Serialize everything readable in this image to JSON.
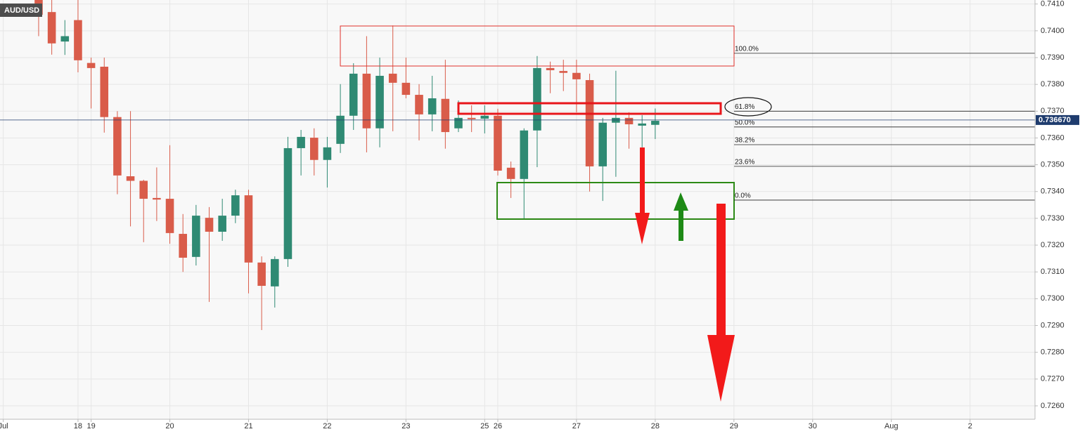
{
  "chart_data": {
    "type": "candlestick",
    "title": "AUD/USD",
    "x": [
      0,
      1,
      2,
      3,
      4,
      5,
      6,
      7,
      8,
      9,
      10,
      11,
      12,
      13,
      14,
      15,
      16,
      17,
      18,
      19,
      20,
      21,
      22,
      23,
      24,
      25,
      26,
      27,
      28,
      29,
      30,
      31,
      32,
      33,
      34,
      35,
      36,
      37,
      38,
      39,
      40,
      41,
      42,
      43,
      44,
      45,
      46,
      47
    ],
    "open": [
      0.7412,
      0.7407,
      0.7396,
      0.7404,
      0.7388,
      0.73866,
      0.73678,
      0.73457,
      0.7344,
      0.73376,
      0.73373,
      0.73242,
      0.73156,
      0.73302,
      0.7325,
      0.7331,
      0.73386,
      0.73135,
      0.73046,
      0.73148,
      0.73562,
      0.73601,
      0.73518,
      0.73578,
      0.73683,
      0.7384,
      0.73636,
      0.7384,
      0.73806,
      0.73761,
      0.73688,
      0.73746,
      0.73636,
      0.73675,
      0.73672,
      0.73683,
      0.73489,
      0.73447,
      0.73628,
      0.73861,
      0.7385,
      0.73843,
      0.73816,
      0.73494,
      0.73657,
      0.73675,
      0.73646,
      0.73649
    ],
    "high": [
      0.7414,
      0.7412,
      0.7404,
      0.7412,
      0.739,
      0.739,
      0.737,
      0.737,
      0.73444,
      0.7349,
      0.73573,
      0.73316,
      0.7335,
      0.73342,
      0.73373,
      0.73407,
      0.73407,
      0.73158,
      0.73158,
      0.73604,
      0.7363,
      0.73636,
      0.73604,
      0.73801,
      0.73879,
      0.7398,
      0.739,
      0.7402,
      0.739,
      0.73801,
      0.73832,
      0.73892,
      0.7374,
      0.73722,
      0.73722,
      0.73709,
      0.73512,
      0.73636,
      0.73906,
      0.73885,
      0.73892,
      0.73892,
      0.7384,
      0.73675,
      0.73851,
      0.73696,
      0.73685,
      0.7371
    ],
    "low": [
      0.7398,
      0.73911,
      0.7391,
      0.73845,
      0.7371,
      0.7362,
      0.7339,
      0.7327,
      0.73211,
      0.7329,
      0.73205,
      0.731,
      0.73124,
      0.72988,
      0.73216,
      0.73282,
      0.7302,
      0.72883,
      0.72967,
      0.73119,
      0.7346,
      0.7346,
      0.73415,
      0.73544,
      0.7363,
      0.73546,
      0.73565,
      0.73625,
      0.73748,
      0.73591,
      0.73625,
      0.7356,
      0.73622,
      0.73622,
      0.73617,
      0.7346,
      0.73376,
      0.73297,
      0.73491,
      0.73767,
      0.73775,
      0.73696,
      0.734,
      0.73365,
      0.73455,
      0.7356,
      0.73565,
      0.73596
    ],
    "close": [
      0.7406,
      0.73953,
      0.7398,
      0.7389,
      0.73861,
      0.73678,
      0.7346,
      0.7344,
      0.73373,
      0.7337,
      0.73245,
      0.73153,
      0.7331,
      0.7325,
      0.7331,
      0.73386,
      0.73135,
      0.73048,
      0.73148,
      0.73562,
      0.73604,
      0.73518,
      0.73565,
      0.73683,
      0.7384,
      0.73636,
      0.73832,
      0.73806,
      0.73761,
      0.73688,
      0.73748,
      0.73622,
      0.73675,
      0.7367,
      0.73683,
      0.73478,
      0.73447,
      0.73628,
      0.73861,
      0.73853,
      0.73843,
      0.73819,
      0.73494,
      0.73657,
      0.73675,
      0.73651,
      0.73654,
      0.73664
    ],
    "up_color": "#2f8a73",
    "down_color": "#d95c4a",
    "xlim": [
      -2.946,
      75.95
    ],
    "xticks": [
      {
        "value": -2.7,
        "label": "Jul"
      },
      {
        "value": 3,
        "label": "18"
      },
      {
        "value": 4,
        "label": "19"
      },
      {
        "value": 10,
        "label": "20"
      },
      {
        "value": 16,
        "label": "21"
      },
      {
        "value": 22,
        "label": "22"
      },
      {
        "value": 28,
        "label": "23"
      },
      {
        "value": 34,
        "label": "25"
      },
      {
        "value": 35,
        "label": "26"
      },
      {
        "value": 41,
        "label": "27"
      },
      {
        "value": 47,
        "label": "28"
      },
      {
        "value": 53,
        "label": "29"
      },
      {
        "value": 59,
        "label": "30"
      },
      {
        "value": 65,
        "label": "Aug"
      },
      {
        "value": 71,
        "label": "2"
      }
    ],
    "ylim": [
      0.7255,
      0.74115
    ],
    "yticks": [
      {
        "value": 0.741,
        "label": "0.7410"
      },
      {
        "value": 0.74,
        "label": "0.7400"
      },
      {
        "value": 0.739,
        "label": "0.7390"
      },
      {
        "value": 0.738,
        "label": "0.7380"
      },
      {
        "value": 0.737,
        "label": "0.7370"
      },
      {
        "value": 0.736,
        "label": "0.7360"
      },
      {
        "value": 0.735,
        "label": "0.7350"
      },
      {
        "value": 0.734,
        "label": "0.7340"
      },
      {
        "value": 0.733,
        "label": "0.7330"
      },
      {
        "value": 0.732,
        "label": "0.7320"
      },
      {
        "value": 0.731,
        "label": "0.7310"
      },
      {
        "value": 0.73,
        "label": "0.7300"
      },
      {
        "value": 0.729,
        "label": "0.7290"
      },
      {
        "value": 0.728,
        "label": "0.7280"
      },
      {
        "value": 0.727,
        "label": "0.7270"
      },
      {
        "value": 0.726,
        "label": "0.7260"
      }
    ],
    "grid": true,
    "last_price": {
      "value": 0.73667,
      "label": "0.736670"
    },
    "fib_levels": [
      {
        "label": "100.0%",
        "value": 0.73916
      },
      {
        "label": "61.8%",
        "value": 0.737
      },
      {
        "label": "50.0%",
        "value": 0.73641
      },
      {
        "label": "38.2%",
        "value": 0.73575
      },
      {
        "label": "23.6%",
        "value": 0.73494
      },
      {
        "label": "0.0%",
        "value": 0.73368
      }
    ]
  }
}
